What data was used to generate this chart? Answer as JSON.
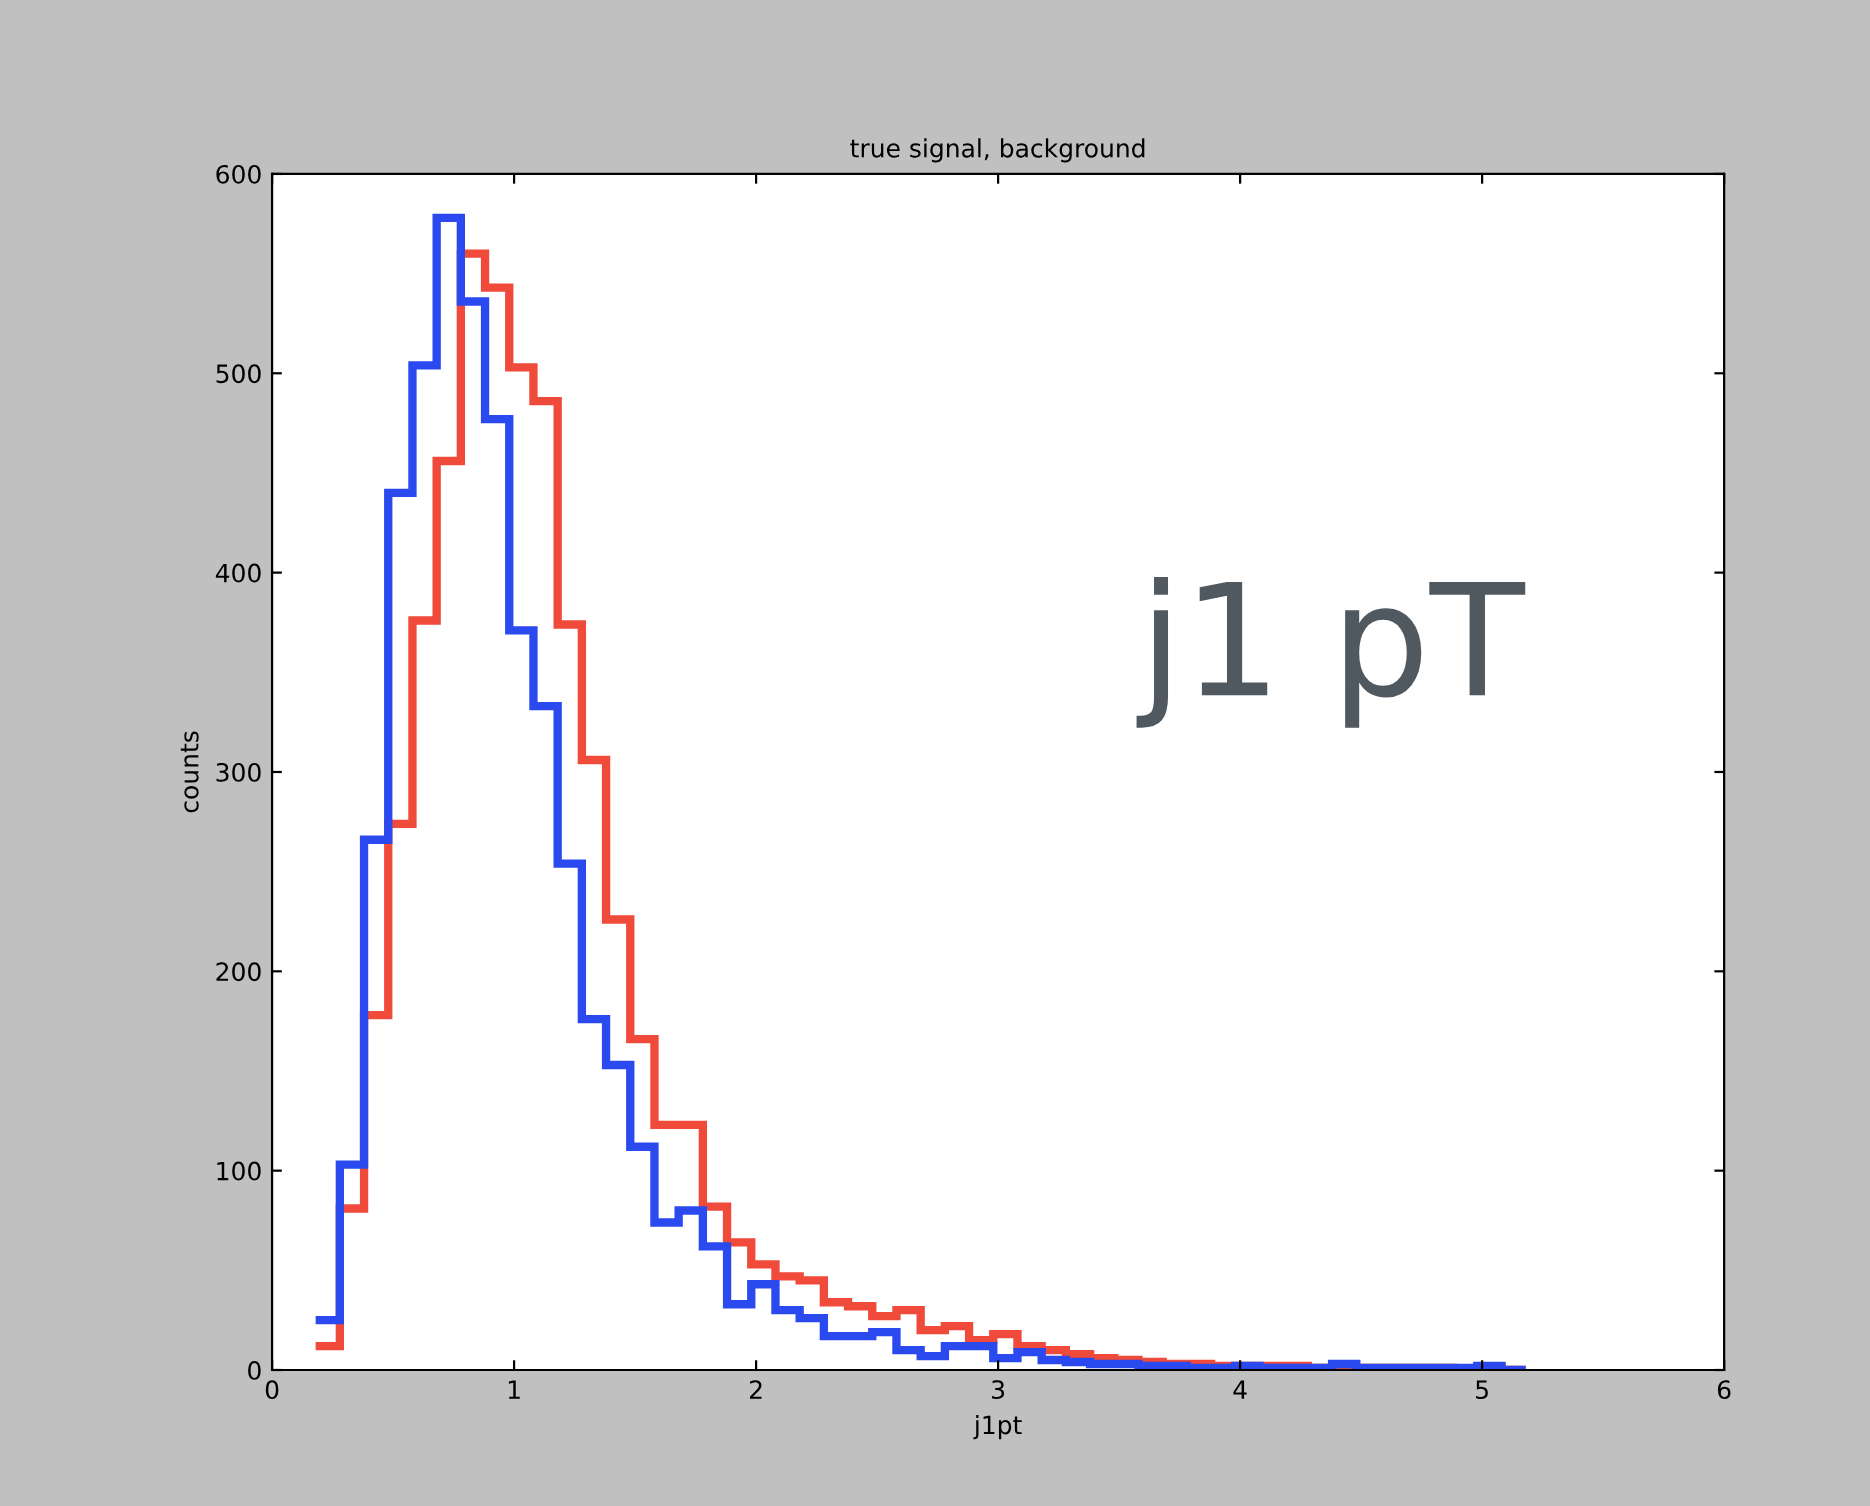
{
  "chart_data": {
    "type": "histogram",
    "title": "true signal, background",
    "xlabel": "j1pt",
    "ylabel": "counts",
    "bins": [
      0.18,
      0.28,
      0.38,
      0.48,
      0.58,
      0.68,
      0.78,
      0.88,
      0.98,
      1.08,
      1.18,
      1.28,
      1.38,
      1.48,
      1.58,
      1.68,
      1.78,
      1.88,
      1.98,
      2.08,
      2.18,
      2.28,
      2.38,
      2.48,
      2.58,
      2.68,
      2.78,
      2.88,
      2.98,
      3.08,
      3.18,
      3.28,
      3.38,
      3.48,
      3.58,
      3.68,
      3.78,
      3.88,
      3.98,
      4.08,
      4.18,
      4.28,
      4.38,
      4.48,
      4.58,
      4.68,
      4.78,
      4.88,
      4.98,
      5.08,
      5.18
    ],
    "series": [
      {
        "color": "#f04a3a",
        "values": [
          12,
          81,
          178,
          274,
          376,
          456,
          560,
          543,
          503,
          486,
          374,
          306,
          226,
          166,
          123,
          123,
          82,
          64,
          53,
          47,
          45,
          34,
          32,
          27,
          30,
          20,
          22,
          15,
          18,
          12,
          10,
          8,
          6,
          5,
          4,
          3,
          3,
          2,
          2,
          2,
          2,
          1,
          1,
          1,
          1,
          1,
          1,
          0,
          1,
          0
        ]
      },
      {
        "color": "#2a4af0",
        "values": [
          25,
          103,
          266,
          440,
          504,
          578,
          536,
          477,
          371,
          333,
          254,
          176,
          153,
          112,
          74,
          80,
          62,
          33,
          43,
          30,
          26,
          17,
          17,
          19,
          10,
          7,
          12,
          12,
          6,
          9,
          5,
          4,
          3,
          3,
          2,
          2,
          1,
          1,
          2,
          1,
          1,
          1,
          3,
          1,
          1,
          1,
          1,
          1,
          2,
          0
        ]
      }
    ],
    "xlim": [
      0,
      6
    ],
    "ylim": [
      0,
      600
    ],
    "xticks": [
      0,
      1,
      2,
      3,
      4,
      5,
      6
    ],
    "yticks": [
      0,
      100,
      200,
      300,
      400,
      500,
      600
    ],
    "annotations": [
      "j1 pT"
    ],
    "grid": false,
    "legend": false
  }
}
